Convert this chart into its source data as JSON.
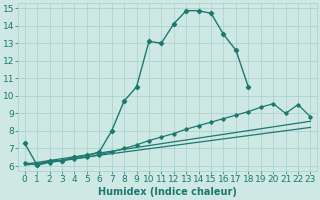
{
  "xlabel": "Humidex (Indice chaleur)",
  "xlim": [
    -0.5,
    23.5
  ],
  "ylim": [
    5.7,
    15.3
  ],
  "yticks": [
    6,
    7,
    8,
    9,
    10,
    11,
    12,
    13,
    14,
    15
  ],
  "xticks": [
    0,
    1,
    2,
    3,
    4,
    5,
    6,
    7,
    8,
    9,
    10,
    11,
    12,
    13,
    14,
    15,
    16,
    17,
    18,
    19,
    20,
    21,
    22,
    23
  ],
  "bg_color": "#cee8e4",
  "grid_color": "#aacfcc",
  "line_color": "#1a7a6e",
  "line_main": {
    "x": [
      0,
      1,
      2,
      3,
      4,
      5,
      6,
      7,
      8,
      9,
      10,
      11,
      12,
      13,
      14,
      15,
      16,
      17,
      18
    ],
    "y": [
      7.3,
      6.05,
      6.3,
      6.3,
      6.5,
      6.6,
      6.8,
      8.0,
      9.7,
      10.5,
      13.1,
      13.0,
      14.1,
      14.85,
      14.85,
      14.7,
      13.5,
      12.6,
      10.5
    ]
  },
  "line_upper": {
    "x": [
      0,
      1,
      2,
      3,
      4,
      5,
      6,
      7,
      8,
      9,
      10,
      11,
      12,
      13,
      14,
      15,
      16,
      17,
      18,
      19,
      20,
      21,
      22,
      23
    ],
    "y": [
      6.2,
      6.05,
      6.2,
      6.3,
      6.4,
      6.5,
      6.65,
      6.8,
      7.0,
      7.2,
      7.45,
      7.65,
      7.85,
      8.1,
      8.3,
      8.5,
      8.7,
      8.9,
      9.1,
      9.35,
      9.55,
      9.0,
      9.5,
      8.8
    ]
  },
  "line_mid": {
    "x": [
      0,
      23
    ],
    "y": [
      6.1,
      8.55
    ]
  },
  "line_low": {
    "x": [
      0,
      23
    ],
    "y": [
      6.05,
      8.2
    ]
  },
  "fontsize_xlabel": 7,
  "fontsize_ticks": 6.5
}
